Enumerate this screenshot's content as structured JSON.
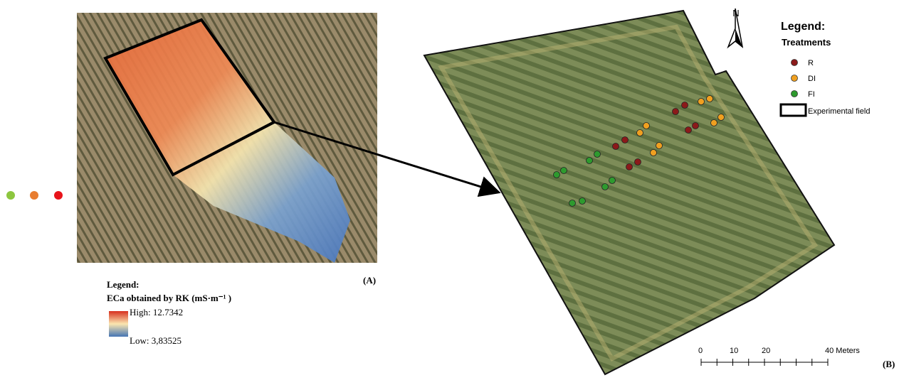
{
  "panel_a": {
    "legend_title": "Legend:",
    "legend_subtitle": "ECa obtained by RK (mS·m⁻¹ )",
    "high_label": "High: 12.7342",
    "low_label": "Low: 3,83525",
    "panel_label": "(A)"
  },
  "panel_b": {
    "north": "N",
    "legend_title": "Legend:",
    "legend_subtitle": "Treatments",
    "treatments": [
      {
        "name": "R",
        "color": "#8b1a1a"
      },
      {
        "name": "DI",
        "color": "#f0a020"
      },
      {
        "name": "FI",
        "color": "#2e9a2e"
      }
    ],
    "field_label": "Experimental field",
    "scale_labels": [
      "0",
      "10",
      "20",
      "40 Meters"
    ],
    "panel_label": "(B)"
  }
}
